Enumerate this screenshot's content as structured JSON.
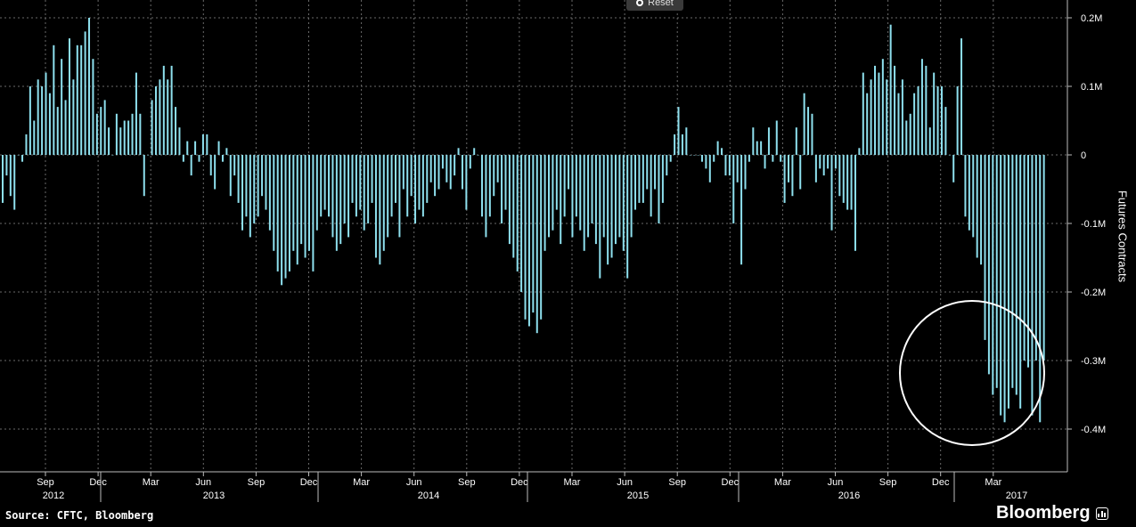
{
  "reset_label": "Reset",
  "source": "Source: CFTC, Bloomberg",
  "brand": "Bloomberg",
  "brand_icon": "bloomberg-terminal-icon",
  "colors": {
    "bar": "#8ee0ee",
    "grid": "#6a6a6a",
    "background": "#000000",
    "circle": "#ffffff"
  },
  "chart_data": {
    "type": "bar",
    "ylabel": "Futures Contracts",
    "ylim": [
      -0.46,
      0.2
    ],
    "y_ticks": [
      {
        "value": 0.2,
        "label": "0.2M"
      },
      {
        "value": 0.1,
        "label": "0.1M"
      },
      {
        "value": 0,
        "label": "0"
      },
      {
        "value": -0.1,
        "label": "-0.1M"
      },
      {
        "value": -0.2,
        "label": "-0.2M"
      },
      {
        "value": -0.3,
        "label": "-0.3M"
      },
      {
        "value": -0.4,
        "label": "-0.4M"
      }
    ],
    "x_month_ticks": [
      "Sep",
      "Dec",
      "Mar",
      "Jun",
      "Sep",
      "Dec",
      "Mar",
      "Jun",
      "Sep",
      "Dec",
      "Mar",
      "Jun",
      "Sep",
      "Dec",
      "Mar",
      "Jun",
      "Sep",
      "Dec",
      "Mar"
    ],
    "x_year_labels": [
      "2012",
      "2013",
      "2014",
      "2015",
      "2016",
      "2017"
    ],
    "grid": true,
    "annotation": "circle around late-2016 / early-2017 record net short",
    "start_date": "2012-07-03",
    "frequency": "weekly",
    "values": [
      -0.07,
      -0.03,
      -0.06,
      -0.08,
      0,
      -0.01,
      0.03,
      0.1,
      0.05,
      0.11,
      0.1,
      0.12,
      0.09,
      0.16,
      0.07,
      0.14,
      0.08,
      0.17,
      0.11,
      0.16,
      0.16,
      0.18,
      0.2,
      0.14,
      0.06,
      0.07,
      0.08,
      0.04,
      0,
      0.06,
      0.04,
      0.05,
      0.05,
      0.06,
      0.12,
      0.06,
      -0.06,
      0,
      0.08,
      0.1,
      0.11,
      0.13,
      0.11,
      0.13,
      0.07,
      0.04,
      -0.01,
      0.02,
      -0.03,
      0.02,
      -0.01,
      0.03,
      0.03,
      -0.03,
      -0.05,
      0.02,
      -0.01,
      0.01,
      -0.06,
      -0.03,
      -0.07,
      -0.11,
      -0.09,
      -0.12,
      -0.1,
      -0.09,
      -0.06,
      -0.08,
      -0.11,
      -0.14,
      -0.17,
      -0.19,
      -0.18,
      -0.17,
      -0.14,
      -0.16,
      -0.13,
      -0.15,
      -0.14,
      -0.17,
      -0.11,
      -0.09,
      -0.08,
      -0.09,
      -0.12,
      -0.14,
      -0.13,
      -0.1,
      -0.12,
      -0.07,
      -0.09,
      -0.08,
      -0.11,
      -0.1,
      -0.07,
      -0.15,
      -0.16,
      -0.14,
      -0.12,
      -0.09,
      -0.07,
      -0.12,
      -0.05,
      -0.09,
      -0.06,
      -0.1,
      -0.08,
      -0.09,
      -0.07,
      -0.04,
      -0.06,
      -0.05,
      -0.02,
      -0.04,
      -0.05,
      -0.03,
      0.01,
      -0.05,
      -0.08,
      -0.02,
      0.01,
      0,
      -0.09,
      -0.12,
      -0.09,
      -0.06,
      -0.04,
      -0.1,
      -0.08,
      -0.13,
      -0.15,
      -0.17,
      -0.2,
      -0.24,
      -0.25,
      -0.23,
      -0.26,
      -0.24,
      -0.14,
      -0.12,
      -0.11,
      -0.08,
      -0.13,
      -0.09,
      -0.05,
      -0.12,
      -0.09,
      -0.11,
      -0.14,
      -0.12,
      -0.1,
      -0.13,
      -0.18,
      -0.12,
      -0.16,
      -0.15,
      -0.13,
      -0.12,
      -0.14,
      -0.18,
      -0.12,
      -0.08,
      -0.07,
      -0.07,
      -0.05,
      -0.09,
      -0.05,
      -0.1,
      -0.07,
      -0.03,
      -0.01,
      0.03,
      0.07,
      0.03,
      0.04,
      0,
      0,
      0,
      -0.01,
      -0.02,
      -0.04,
      -0.01,
      0.02,
      0.01,
      -0.03,
      -0.03,
      -0.1,
      -0.04,
      -0.16,
      -0.05,
      -0.01,
      0.04,
      0.02,
      0.02,
      -0.02,
      0.04,
      -0.01,
      0.05,
      -0.01,
      -0.07,
      -0.04,
      -0.06,
      0.04,
      -0.05,
      0.09,
      0.07,
      0.06,
      -0.04,
      -0.02,
      -0.03,
      -0.02,
      -0.11,
      -0.02,
      -0.06,
      -0.07,
      -0.08,
      -0.08,
      -0.14,
      0.01,
      0.12,
      0.09,
      0.11,
      0.13,
      0.12,
      0.14,
      0.11,
      0.19,
      0.13,
      0.09,
      0.11,
      0.05,
      0.06,
      0.09,
      0.1,
      0.14,
      0.13,
      0.04,
      0.12,
      0.1,
      0.1,
      0.07,
      0,
      -0.04,
      0.1,
      0.17,
      -0.09,
      -0.11,
      -0.12,
      -0.15,
      -0.16,
      -0.27,
      -0.32,
      -0.35,
      -0.34,
      -0.38,
      -0.39,
      -0.37,
      -0.34,
      -0.35,
      -0.37,
      -0.3,
      -0.31,
      -0.38,
      -0.3,
      -0.39,
      -0.3
    ]
  }
}
